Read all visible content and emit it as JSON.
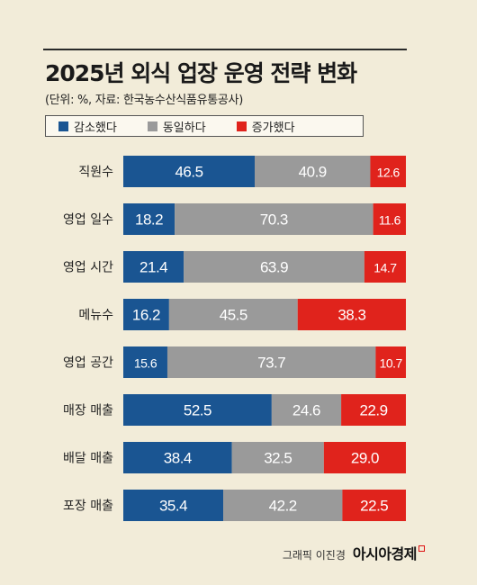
{
  "title": "2025년 외식 업장 운영 전략 변화",
  "subtitle": "(단위: %, 자료: 한국농수산식품유통공사)",
  "footer": {
    "credit": "그래픽 이진경",
    "brand": "아시아경제"
  },
  "colors": {
    "decreased": "#1a5592",
    "same": "#9a9a9a",
    "increased": "#e0231c",
    "background": "#f2ecd9"
  },
  "chart_data": {
    "type": "bar",
    "orientation": "horizontal",
    "stacked": true,
    "title": "2025년 외식 업장 운영 전략 변화",
    "legend_position": "top",
    "categories": [
      "직원수",
      "영업 일수",
      "영업 시간",
      "메뉴수",
      "영업 공간",
      "매장 매출",
      "배달 매출",
      "포장 매출"
    ],
    "series": [
      {
        "name": "감소했다",
        "values": [
          46.5,
          18.2,
          21.4,
          16.2,
          15.6,
          52.5,
          38.4,
          35.4
        ]
      },
      {
        "name": "동일하다",
        "values": [
          40.9,
          70.3,
          63.9,
          45.5,
          73.7,
          24.6,
          32.5,
          42.2
        ]
      },
      {
        "name": "증가했다",
        "values": [
          12.6,
          11.6,
          14.7,
          38.3,
          10.7,
          22.9,
          29.0,
          22.5
        ]
      }
    ],
    "xlim": [
      0,
      100
    ]
  }
}
